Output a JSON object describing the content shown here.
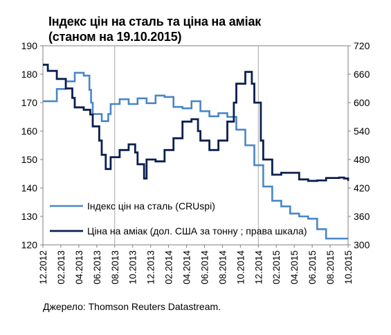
{
  "title_line1": "Індекс цін на сталь та ціна на аміак",
  "title_line2": "(станом на 19.10.2015)",
  "source": "Джерело: Thomson Reuters Datastream.",
  "colors": {
    "steel": "#4a86c6",
    "ammonia": "#0b1f4f",
    "axis": "#7f7f7f",
    "grid": "#a6a6a6"
  },
  "chart_data": {
    "type": "line",
    "x_tick_labels": [
      "12.2012",
      "02.2013",
      "04.2013",
      "06.2013",
      "08.2013",
      "10.2013",
      "12.2013",
      "02.2014",
      "04.2014",
      "06.2014",
      "08.2014",
      "10.2014",
      "12.2014",
      "02.2015",
      "04.2015",
      "06.2015",
      "08.2015",
      "10.2015"
    ],
    "x_range_months": [
      "12.2012",
      "10.2015"
    ],
    "y_left": {
      "ticks": [
        120,
        130,
        140,
        150,
        160,
        170,
        180,
        190
      ],
      "range": [
        120,
        190
      ]
    },
    "y_right": {
      "ticks": [
        300,
        360,
        420,
        480,
        540,
        600,
        660,
        720
      ],
      "range": [
        300,
        720
      ]
    },
    "vertical_lines_at": [
      "08.2013",
      "12.2014"
    ],
    "legend": {
      "position": "lower-left"
    },
    "series": [
      {
        "name": "Індекс  цін на сталь (CRUspi)",
        "axis": "left",
        "points": [
          [
            "12.2012",
            170.5
          ],
          [
            "01.2013",
            170.5
          ],
          [
            "01.2013",
            174.8
          ],
          [
            "02.2013",
            174.8
          ],
          [
            "02.2013",
            177.5
          ],
          [
            "03.2013",
            177.5
          ],
          [
            "03.2013",
            180.5
          ],
          [
            "04.2013",
            180.5
          ],
          [
            "04.2013",
            179.5
          ],
          [
            "05.2013",
            179.5
          ],
          [
            "05.2013",
            174.5
          ],
          [
            "05.2013",
            170
          ],
          [
            "05.2013",
            166
          ],
          [
            "06.2013",
            166
          ],
          [
            "06.2013",
            163.5
          ],
          [
            "07.2013",
            163.5
          ],
          [
            "07.2013",
            166
          ],
          [
            "07.2013",
            169.5
          ],
          [
            "08.2013",
            169.5
          ],
          [
            "08.2013",
            171.2
          ],
          [
            "09.2013",
            171.2
          ],
          [
            "09.2013",
            169.5
          ],
          [
            "10.2013",
            169.5
          ],
          [
            "10.2013",
            171.5
          ],
          [
            "11.2013",
            171.5
          ],
          [
            "11.2013",
            169.8
          ],
          [
            "12.2013",
            169.8
          ],
          [
            "12.2013",
            172.5
          ],
          [
            "01.2014",
            172.5
          ],
          [
            "01.2014",
            172
          ],
          [
            "02.2014",
            172
          ],
          [
            "02.2014",
            168.5
          ],
          [
            "03.2014",
            168.5
          ],
          [
            "03.2014",
            168
          ],
          [
            "04.2014",
            168
          ],
          [
            "04.2014",
            170.5
          ],
          [
            "05.2014",
            170.5
          ],
          [
            "05.2014",
            167
          ],
          [
            "06.2014",
            167
          ],
          [
            "06.2014",
            165.2
          ],
          [
            "07.2014",
            165.2
          ],
          [
            "07.2014",
            166.3
          ],
          [
            "08.2014",
            166.3
          ],
          [
            "08.2014",
            165
          ],
          [
            "09.2014",
            165
          ],
          [
            "09.2014",
            160.5
          ],
          [
            "10.2014",
            160.5
          ],
          [
            "10.2014",
            155
          ],
          [
            "11.2014",
            155
          ],
          [
            "11.2014",
            148
          ],
          [
            "12.2014",
            148
          ],
          [
            "12.2014",
            140.5
          ],
          [
            "01.2015",
            140.5
          ],
          [
            "01.2015",
            135.5
          ],
          [
            "02.2015",
            135.5
          ],
          [
            "02.2015",
            133.5
          ],
          [
            "03.2015",
            133.5
          ],
          [
            "03.2015",
            131
          ],
          [
            "04.2015",
            131
          ],
          [
            "04.2015",
            130
          ],
          [
            "05.2015",
            130
          ],
          [
            "05.2015",
            129.2
          ],
          [
            "06.2015",
            129.2
          ],
          [
            "06.2015",
            125.5
          ],
          [
            "07.2015",
            125.5
          ],
          [
            "07.2015",
            122.2
          ],
          [
            "10.2015",
            122.2
          ]
        ]
      },
      {
        "name": "Ціна на аміак (дол.  США за тонну ; права шкала)",
        "axis": "right",
        "points": [
          [
            "12.2012",
            680
          ],
          [
            "12.2012",
            667
          ],
          [
            "01.2013",
            667
          ],
          [
            "01.2013",
            650
          ],
          [
            "02.2013",
            650
          ],
          [
            "02.2013",
            630
          ],
          [
            "03.2013",
            630
          ],
          [
            "03.2013",
            610
          ],
          [
            "03.2013",
            590
          ],
          [
            "04.2013",
            590
          ],
          [
            "04.2013",
            585
          ],
          [
            "05.2013",
            585
          ],
          [
            "05.2013",
            575
          ],
          [
            "05.2013",
            550
          ],
          [
            "06.2013",
            550
          ],
          [
            "06.2013",
            520
          ],
          [
            "06.2013",
            490
          ],
          [
            "07.2013",
            460
          ],
          [
            "07.2013",
            485
          ],
          [
            "08.2013",
            485
          ],
          [
            "08.2013",
            500
          ],
          [
            "09.2013",
            500
          ],
          [
            "09.2013",
            512
          ],
          [
            "10.2013",
            512
          ],
          [
            "10.2013",
            495
          ],
          [
            "10.2013",
            470
          ],
          [
            "11.2013",
            470
          ],
          [
            "11.2013",
            440
          ],
          [
            "11.2013",
            480
          ],
          [
            "12.2013",
            480
          ],
          [
            "12.2013",
            476
          ],
          [
            "01.2014",
            476
          ],
          [
            "01.2014",
            500
          ],
          [
            "02.2014",
            500
          ],
          [
            "02.2014",
            525
          ],
          [
            "03.2014",
            525
          ],
          [
            "03.2014",
            560
          ],
          [
            "04.2014",
            560
          ],
          [
            "04.2014",
            565
          ],
          [
            "05.2014",
            565
          ],
          [
            "05.2014",
            540
          ],
          [
            "05.2014",
            520
          ],
          [
            "06.2014",
            520
          ],
          [
            "06.2014",
            500
          ],
          [
            "07.2014",
            500
          ],
          [
            "07.2014",
            520
          ],
          [
            "08.2014",
            520
          ],
          [
            "08.2014",
            560
          ],
          [
            "09.2014",
            560
          ],
          [
            "09.2014",
            600
          ],
          [
            "09.2014",
            640
          ],
          [
            "10.2014",
            640
          ],
          [
            "10.2014",
            665
          ],
          [
            "11.2014",
            665
          ],
          [
            "11.2014",
            640
          ],
          [
            "11.2014",
            600
          ],
          [
            "12.2014",
            600
          ],
          [
            "12.2014",
            520
          ],
          [
            "12.2014",
            480
          ],
          [
            "01.2015",
            480
          ],
          [
            "01.2015",
            448
          ],
          [
            "02.2015",
            448
          ],
          [
            "02.2015",
            452
          ],
          [
            "03.2015",
            452
          ],
          [
            "04.2015",
            452
          ],
          [
            "04.2015",
            438
          ],
          [
            "05.2015",
            438
          ],
          [
            "05.2015",
            435
          ],
          [
            "06.2015",
            435
          ],
          [
            "06.2015",
            436
          ],
          [
            "07.2015",
            436
          ],
          [
            "07.2015",
            441
          ],
          [
            "08.2015",
            441
          ],
          [
            "09.2015",
            442
          ],
          [
            "09.2015",
            440
          ],
          [
            "10.2015",
            435
          ]
        ]
      }
    ]
  }
}
